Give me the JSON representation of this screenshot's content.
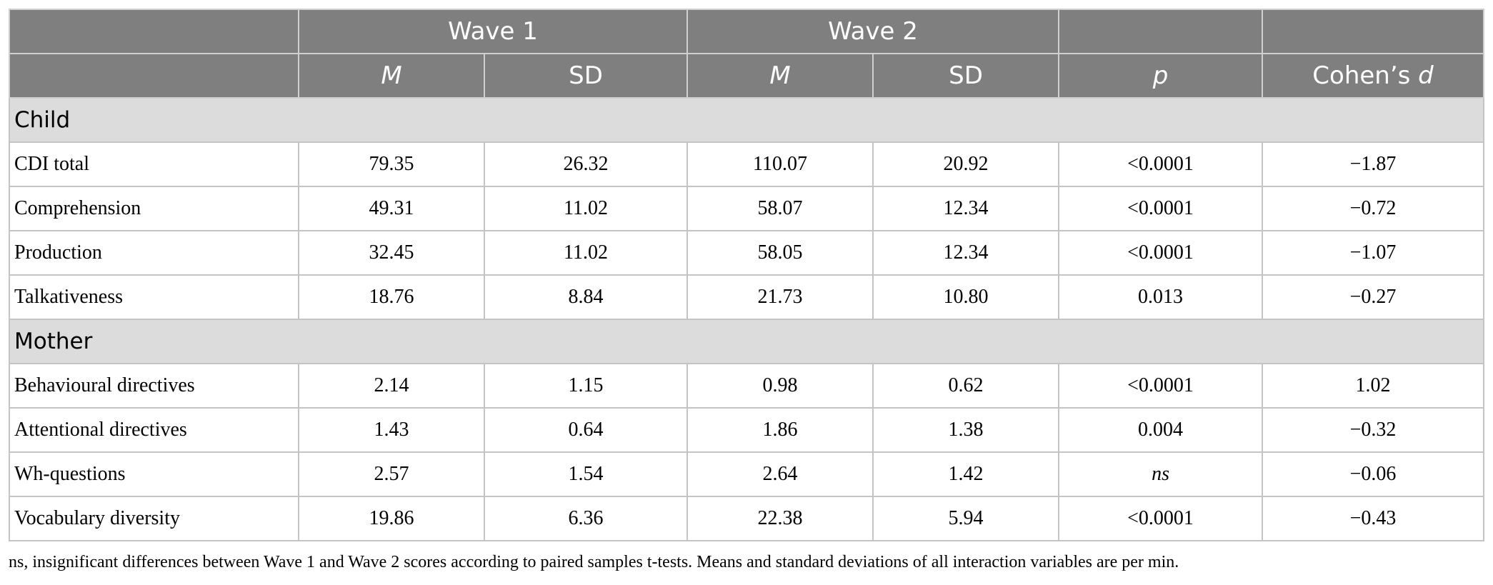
{
  "header": {
    "row1": [
      "",
      "Wave 1",
      "Wave 2",
      "",
      ""
    ],
    "row2": [
      "",
      "M",
      "SD",
      "M",
      "SD",
      "p",
      "Cohen’s d"
    ]
  },
  "sections": [
    {
      "title": "Child",
      "rows": [
        [
          "CDI total",
          "79.35",
          "26.32",
          "110.07",
          "20.92",
          "<0.0001",
          "−1.87"
        ],
        [
          "Comprehension",
          "49.31",
          "11.02",
          "58.07",
          "12.34",
          "<0.0001",
          "−0.72"
        ],
        [
          "Production",
          "32.45",
          "11.02",
          "58.05",
          "12.34",
          "<0.0001",
          "−1.07"
        ],
        [
          "Talkativeness",
          "18.76",
          "8.84",
          "21.73",
          "10.80",
          "0.013",
          "−0.27"
        ]
      ]
    },
    {
      "title": "Mother",
      "rows": [
        [
          "Behavioural directives",
          "2.14",
          "1.15",
          "0.98",
          "0.62",
          "<0.0001",
          "1.02"
        ],
        [
          "Attentional directives",
          "1.43",
          "0.64",
          "1.86",
          "1.38",
          "0.004",
          "−0.32"
        ],
        [
          "Wh-questions",
          "2.57",
          "1.54",
          "2.64",
          "1.42",
          "ns",
          "−0.06"
        ],
        [
          "Vocabulary diversity",
          "19.86",
          "6.36",
          "22.38",
          "5.94",
          "<0.0001",
          "−0.43"
        ]
      ]
    }
  ],
  "footnote": "ns, insignificant differences between Wave 1 and Wave 2 scores according to paired samples t-tests. Means and standard deviations of all interaction variables are per min."
}
